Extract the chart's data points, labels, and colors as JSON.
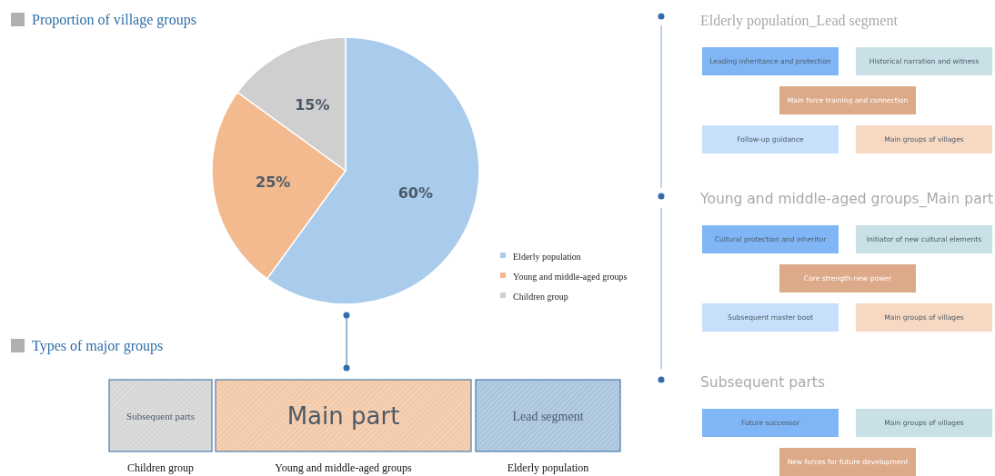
{
  "chart_data": [
    {
      "type": "pie",
      "title": "Proportion of village groups",
      "categories": [
        "Elderly population",
        "Young and middle-aged groups",
        "Children group"
      ],
      "values": [
        60,
        25,
        15
      ],
      "colors": [
        "#a9cbec",
        "#f3b98f",
        "#cfcfcf"
      ],
      "value_labels": [
        "60%",
        "25%",
        "15%"
      ],
      "legend": "bottom right"
    },
    {
      "type": "other",
      "title": "Types of major groups",
      "categories": [
        "Children group",
        "Young and middle-aged groups",
        "Elderly population"
      ],
      "annotations": [
        "Subsequent parts",
        "Main part",
        "Lead segment"
      ],
      "colors": [
        "#d6d6d6",
        "#f3c9a8",
        "#a9c4dc"
      ]
    },
    {
      "type": "other",
      "title": "Elderly population_Lead segment",
      "annotations": [
        "Leading inheritance and protection",
        "Historical narration and witness",
        "Main force training and connection",
        "Follow-up guidance",
        "Main groups of villages"
      ],
      "colors": [
        "#80b6f6",
        "#c8e0e6",
        "#dcaa89",
        "#c6e0fb",
        "#f7d9c3"
      ]
    },
    {
      "type": "other",
      "title": "Young and middle-aged groups_Main part",
      "annotations": [
        "Cultural protection and inheritor",
        "Initiator of new cultural elements",
        "Core strength-new power",
        "Subsequent master boot",
        "Main groups of villages"
      ],
      "colors": [
        "#80b6f6",
        "#c8e0e6",
        "#dcaa89",
        "#c6e0fb",
        "#f7d9c3"
      ]
    },
    {
      "type": "other",
      "title": "Subsequent parts",
      "annotations": [
        "Future successor",
        "Main groups of villages",
        "New forces for future development"
      ],
      "colors": [
        "#80b6f6",
        "#c8e0e6",
        "#dcaa89"
      ]
    }
  ]
}
